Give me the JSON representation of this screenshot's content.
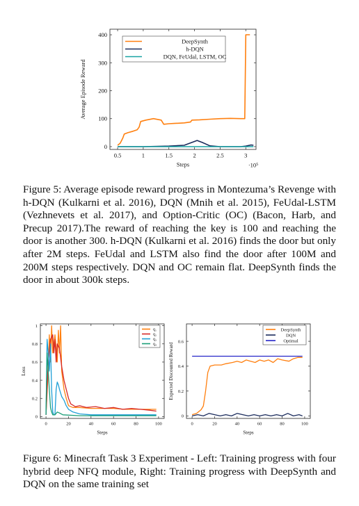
{
  "figure5": {
    "caption": "Figure 5: Average episode reward progress in Montezuma’s Revenge with h-DQN (Kulkarni et al. 2016), DQN (Mnih et al. 2015), FeUdal-LSTM (Vezhnevets et al. 2017), and Option-Critic (OC) (Bacon, Harb, and Precup 2017).The reward of reaching the key is 100 and reaching the door is another 300. h-DQN (Kulkarni et al. 2016) finds the door but only after 2M steps. FeUdal and LSTM also find the door after 100M and 200M steps respectively. DQN and OC remain flat. DeepSynth finds the door in about 300k steps.",
    "chart_data": {
      "type": "line",
      "xlabel": "Steps",
      "ylabel": "Average Episode Reward",
      "x_multiplier_label": "·10⁵",
      "xlim": [
        0.35,
        3.2
      ],
      "ylim": [
        -10,
        420
      ],
      "x_ticks": [
        0.5,
        1,
        1.5,
        2,
        2.5,
        3
      ],
      "x_tick_labels": [
        "0.5",
        "1",
        "1.5",
        "2",
        "2.5",
        "3"
      ],
      "y_ticks": [
        0,
        100,
        200,
        300,
        400
      ],
      "y_tick_labels": [
        "0",
        "100",
        "200",
        "300",
        "400"
      ],
      "legend_position": "top-right",
      "series": [
        {
          "name": "DeepSynth",
          "color": "#ff7f0e",
          "points": [
            [
              0.5,
              5
            ],
            [
              0.55,
              12
            ],
            [
              0.6,
              30
            ],
            [
              0.63,
              45
            ],
            [
              0.7,
              50
            ],
            [
              0.8,
              55
            ],
            [
              0.88,
              60
            ],
            [
              0.92,
              70
            ],
            [
              0.95,
              90
            ],
            [
              1.05,
              95
            ],
            [
              1.2,
              100
            ],
            [
              1.35,
              95
            ],
            [
              1.4,
              80
            ],
            [
              1.5,
              82
            ],
            [
              1.6,
              83
            ],
            [
              1.8,
              85
            ],
            [
              1.92,
              88
            ],
            [
              1.95,
              95
            ],
            [
              2.1,
              96
            ],
            [
              2.3,
              98
            ],
            [
              2.5,
              100
            ],
            [
              2.7,
              101
            ],
            [
              2.9,
              100
            ],
            [
              2.98,
              100
            ],
            [
              3.0,
              400
            ],
            [
              3.08,
              400
            ]
          ]
        },
        {
          "name": "h-DQN",
          "color": "#1a2b5c",
          "points": [
            [
              0.5,
              0
            ],
            [
              1.0,
              0
            ],
            [
              1.5,
              2
            ],
            [
              1.8,
              5
            ],
            [
              1.95,
              15
            ],
            [
              2.05,
              22
            ],
            [
              2.15,
              15
            ],
            [
              2.3,
              3
            ],
            [
              2.5,
              0
            ],
            [
              2.9,
              0
            ],
            [
              3.0,
              2
            ],
            [
              3.1,
              6
            ],
            [
              3.15,
              5
            ]
          ]
        },
        {
          "name": "DQN, FeUdal, LSTM, OC",
          "color": "#17a3a3",
          "points": [
            [
              0.5,
              0
            ],
            [
              3.15,
              0
            ]
          ]
        }
      ]
    }
  },
  "figure6": {
    "caption": "Figure 6: Minecraft Task 3 Experiment - Left: Training progress with four hybrid deep NFQ module, Right: Training progress with DeepSynth and DQN on the same training set",
    "left_chart": {
      "chart_data": {
        "type": "line",
        "xlabel": "Steps",
        "ylabel": "Loss",
        "xlim": [
          -5,
          105
        ],
        "ylim": [
          -0.02,
          1.02
        ],
        "x_ticks": [
          0,
          20,
          40,
          60,
          80,
          100
        ],
        "x_tick_labels": [
          "0",
          "20",
          "40",
          "60",
          "80",
          "100"
        ],
        "y_ticks": [
          0,
          0.2,
          0.4,
          0.6,
          0.8,
          1
        ],
        "y_tick_labels": [
          "0",
          "0.2",
          "0.4",
          "0.6",
          "0.8",
          "1"
        ],
        "legend_position": "top-right",
        "series": [
          {
            "name": "q₁",
            "color": "#ff7f0e",
            "points": [
              [
                0,
                0.02
              ],
              [
                2,
                0.5
              ],
              [
                3,
                0.9
              ],
              [
                4,
                0.6
              ],
              [
                5,
                1.0
              ],
              [
                6,
                0.7
              ],
              [
                8,
                0.9
              ],
              [
                10,
                0.6
              ],
              [
                11,
                0.95
              ],
              [
                12,
                0.7
              ],
              [
                13,
                1.0
              ],
              [
                14,
                0.5
              ],
              [
                16,
                0.3
              ],
              [
                18,
                0.2
              ],
              [
                20,
                0.12
              ],
              [
                24,
                0.1
              ],
              [
                30,
                0.1
              ],
              [
                40,
                0.09
              ],
              [
                50,
                0.09
              ],
              [
                60,
                0.09
              ],
              [
                70,
                0.08
              ],
              [
                80,
                0.08
              ],
              [
                90,
                0.08
              ],
              [
                98,
                0.08
              ]
            ]
          },
          {
            "name": "q₂",
            "color": "#d62728",
            "points": [
              [
                0,
                0.02
              ],
              [
                2,
                0.6
              ],
              [
                4,
                0.85
              ],
              [
                6,
                0.9
              ],
              [
                7,
                0.7
              ],
              [
                8,
                0.85
              ],
              [
                9,
                0.6
              ],
              [
                10,
                0.8
              ],
              [
                12,
                0.75
              ],
              [
                14,
                0.55
              ],
              [
                16,
                0.4
              ],
              [
                18,
                0.3
              ],
              [
                20,
                0.2
              ],
              [
                22,
                0.14
              ],
              [
                26,
                0.11
              ],
              [
                30,
                0.12
              ],
              [
                36,
                0.1
              ],
              [
                44,
                0.11
              ],
              [
                52,
                0.09
              ],
              [
                60,
                0.1
              ],
              [
                68,
                0.08
              ],
              [
                76,
                0.09
              ],
              [
                84,
                0.08
              ],
              [
                92,
                0.07
              ],
              [
                98,
                0.06
              ]
            ]
          },
          {
            "name": "q₃",
            "color": "#1f9fd6",
            "points": [
              [
                0,
                0.02
              ],
              [
                1,
                0.85
              ],
              [
                2,
                0.7
              ],
              [
                3,
                0.5
              ],
              [
                4,
                0.8
              ],
              [
                5,
                0.3
              ],
              [
                6,
                0.05
              ],
              [
                7,
                0.02
              ],
              [
                8,
                0.02
              ],
              [
                9,
                0.3
              ],
              [
                10,
                0.38
              ],
              [
                11,
                0.35
              ],
              [
                12,
                0.3
              ],
              [
                13,
                0.26
              ],
              [
                14,
                0.22
              ],
              [
                16,
                0.18
              ],
              [
                18,
                0.12
              ],
              [
                20,
                0.08
              ],
              [
                24,
                0.05
              ],
              [
                30,
                0.03
              ],
              [
                40,
                0.02
              ],
              [
                60,
                0.02
              ],
              [
                80,
                0.02
              ],
              [
                98,
                0.02
              ]
            ]
          },
          {
            "name": "q₄",
            "color": "#1a9e77",
            "points": [
              [
                0,
                0.02
              ],
              [
                1,
                0.7
              ],
              [
                2,
                0.5
              ],
              [
                3,
                0.3
              ],
              [
                4,
                0.1
              ],
              [
                5,
                0.05
              ],
              [
                6,
                0.02
              ],
              [
                8,
                0.02
              ],
              [
                10,
                0.05
              ],
              [
                12,
                0.04
              ],
              [
                15,
                0.02
              ],
              [
                30,
                0.01
              ],
              [
                60,
                0.01
              ],
              [
                98,
                0.01
              ]
            ]
          }
        ]
      }
    },
    "right_chart": {
      "chart_data": {
        "type": "line",
        "xlabel": "Steps",
        "ylabel": "Expected Discounted Reward",
        "xlim": [
          -5,
          105
        ],
        "ylim": [
          -0.02,
          0.74
        ],
        "x_ticks": [
          0,
          20,
          40,
          60,
          80,
          100
        ],
        "x_tick_labels": [
          "0",
          "20",
          "40",
          "60",
          "80",
          "100"
        ],
        "y_ticks": [
          0,
          0.2,
          0.4,
          0.6
        ],
        "y_tick_labels": [
          "0",
          "0.2",
          "0.4",
          "0.6"
        ],
        "legend_position": "top-right",
        "series": [
          {
            "name": "DeepSynth",
            "color": "#ff7f0e",
            "points": [
              [
                0,
                0.01
              ],
              [
                4,
                0.02
              ],
              [
                8,
                0.05
              ],
              [
                10,
                0.08
              ],
              [
                12,
                0.2
              ],
              [
                14,
                0.35
              ],
              [
                16,
                0.4
              ],
              [
                20,
                0.41
              ],
              [
                26,
                0.41
              ],
              [
                30,
                0.42
              ],
              [
                36,
                0.43
              ],
              [
                40,
                0.44
              ],
              [
                44,
                0.43
              ],
              [
                48,
                0.45
              ],
              [
                52,
                0.44
              ],
              [
                56,
                0.43
              ],
              [
                60,
                0.45
              ],
              [
                64,
                0.44
              ],
              [
                68,
                0.45
              ],
              [
                72,
                0.43
              ],
              [
                76,
                0.46
              ],
              [
                80,
                0.45
              ],
              [
                86,
                0.44
              ],
              [
                90,
                0.46
              ],
              [
                94,
                0.47
              ],
              [
                98,
                0.47
              ]
            ]
          },
          {
            "name": "DQN",
            "color": "#1a2b5c",
            "points": [
              [
                0,
                0.0
              ],
              [
                5,
                0.01
              ],
              [
                10,
                0.0
              ],
              [
                15,
                0.02
              ],
              [
                20,
                0.01
              ],
              [
                25,
                0.0
              ],
              [
                30,
                0.01
              ],
              [
                35,
                0.0
              ],
              [
                40,
                0.02
              ],
              [
                45,
                0.01
              ],
              [
                50,
                0.0
              ],
              [
                55,
                0.01
              ],
              [
                60,
                0.0
              ],
              [
                65,
                0.01
              ],
              [
                70,
                0.0
              ],
              [
                75,
                0.01
              ],
              [
                80,
                0.0
              ],
              [
                85,
                0.02
              ],
              [
                90,
                0.0
              ],
              [
                95,
                0.01
              ],
              [
                98,
                0.0
              ]
            ]
          },
          {
            "name": "Optimal",
            "color": "#2424c8",
            "points": [
              [
                0,
                0.48
              ],
              [
                98,
                0.48
              ]
            ]
          }
        ]
      }
    }
  }
}
